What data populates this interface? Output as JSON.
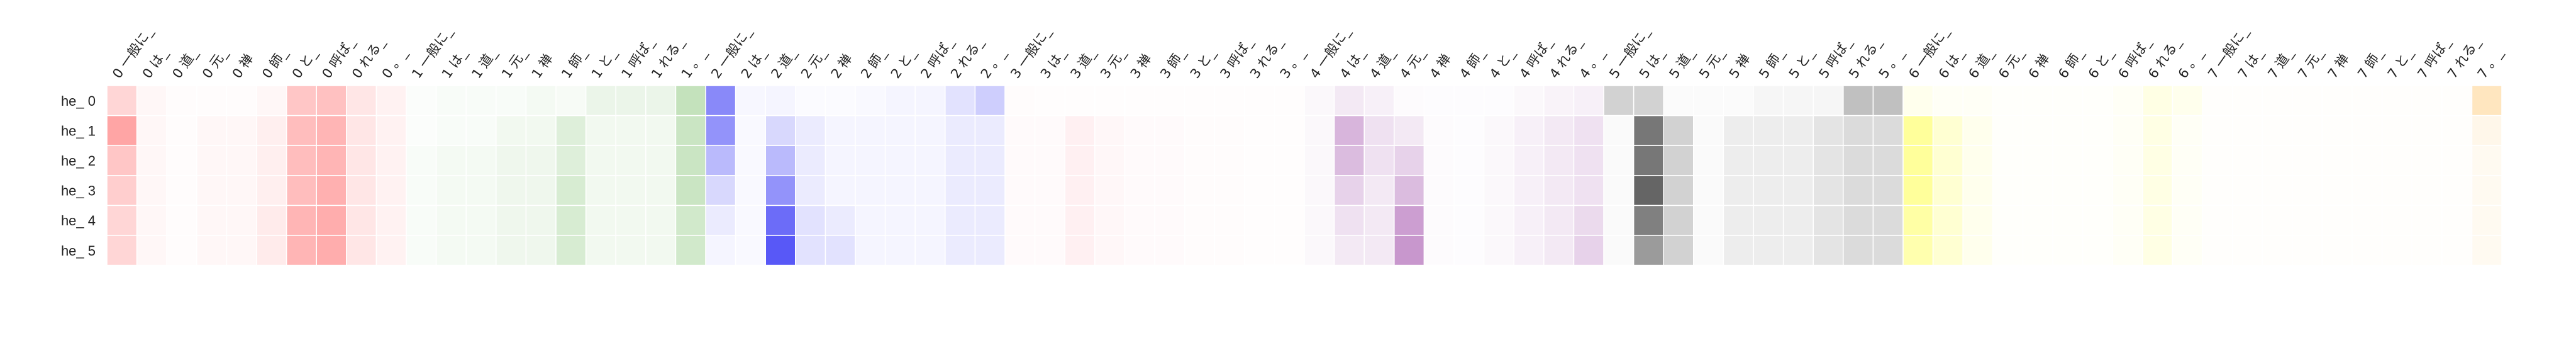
{
  "chart_data": {
    "type": "heatmap",
    "rows": [
      "he_ 0",
      "he_ 1",
      "he_ 2",
      "he_ 3",
      "he_ 4",
      "he_ 5"
    ],
    "columns": [
      "0 一般に_",
      "0 は_",
      "0 道_",
      "0 元_",
      "0 禅",
      "0 師_",
      "0 と_",
      "0 呼ば_",
      "0 れる_",
      "0 。_",
      "1 一般に_",
      "1 は_",
      "1 道_",
      "1 元_",
      "1 禅",
      "1 師_",
      "1 と_",
      "1 呼ば_",
      "1 れる_",
      "1 。_",
      "2 一般に_",
      "2 は_",
      "2 道_",
      "2 元_",
      "2 禅",
      "2 師_",
      "2 と_",
      "2 呼ば_",
      "2 れる_",
      "2 。_",
      "3 一般に_",
      "3 は_",
      "3 道_",
      "3 元_",
      "3 禅",
      "3 師_",
      "3 と_",
      "3 呼ば_",
      "3 れる_",
      "3 。_",
      "4 一般に_",
      "4 は_",
      "4 道_",
      "4 元_",
      "4 禅",
      "4 師_",
      "4 と_",
      "4 呼ば_",
      "4 れる_",
      "4 。_",
      "5 一般に_",
      "5 は_",
      "5 道_",
      "5 元_",
      "5 禅",
      "5 師_",
      "5 と_",
      "5 呼ば_",
      "5 れる_",
      "5 。_",
      "6 一般に_",
      "6 は_",
      "6 道_",
      "6 元_",
      "6 禅",
      "6 師_",
      "6 と_",
      "6 呼ば_",
      "6 れる_",
      "6 。_",
      "7 一般に_",
      "7 は_",
      "7 道_",
      "7 元_",
      "7 禅",
      "7 師_",
      "7 と_",
      "7 呼ば_",
      "7 れる_",
      "7 。_"
    ],
    "group_colors": [
      "#ff5b5b",
      "#7bbf6a",
      "#3b3bf5",
      "#ff9aa8",
      "#b06ab8",
      "#4a4a4a",
      "#ffff4a",
      "#ffc870"
    ],
    "values": [
      [
        0.25,
        0.05,
        0.02,
        0.02,
        0.02,
        0.05,
        0.35,
        0.38,
        0.15,
        0.08,
        0.03,
        0.05,
        0.05,
        0.05,
        0.08,
        0.06,
        0.15,
        0.15,
        0.15,
        0.45,
        0.6,
        0.04,
        0.05,
        0.02,
        0.02,
        0.03,
        0.05,
        0.05,
        0.15,
        0.25,
        0.03,
        0.02,
        0.02,
        0.02,
        0.02,
        0.02,
        0.02,
        0.02,
        0.02,
        0.02,
        0.05,
        0.15,
        0.1,
        0.03,
        0.02,
        0.02,
        0.02,
        0.05,
        0.08,
        0.1,
        0.25,
        0.25,
        0.02,
        0.02,
        0.02,
        0.05,
        0.05,
        0.05,
        0.35,
        0.35,
        0.1,
        0.05,
        0.05,
        0.02,
        0.02,
        0.02,
        0.02,
        0.05,
        0.15,
        0.1,
        0.02,
        0.02,
        0.02,
        0.02,
        0.02,
        0.02,
        0.02,
        0.02,
        0.02,
        0.45
      ],
      [
        0.55,
        0.05,
        0.02,
        0.05,
        0.05,
        0.1,
        0.4,
        0.45,
        0.15,
        0.08,
        0.03,
        0.05,
        0.05,
        0.1,
        0.1,
        0.25,
        0.1,
        0.1,
        0.1,
        0.4,
        0.55,
        0.03,
        0.2,
        0.1,
        0.05,
        0.05,
        0.05,
        0.05,
        0.1,
        0.1,
        0.05,
        0.05,
        0.15,
        0.08,
        0.05,
        0.05,
        0.03,
        0.03,
        0.02,
        0.02,
        0.05,
        0.5,
        0.2,
        0.15,
        0.03,
        0.02,
        0.05,
        0.1,
        0.15,
        0.2,
        0.03,
        0.75,
        0.25,
        0.03,
        0.1,
        0.1,
        0.1,
        0.15,
        0.2,
        0.2,
        0.55,
        0.25,
        0.1,
        0.02,
        0.02,
        0.02,
        0.02,
        0.05,
        0.15,
        0.05,
        0.02,
        0.02,
        0.02,
        0.02,
        0.02,
        0.02,
        0.02,
        0.02,
        0.02,
        0.15
      ],
      [
        0.35,
        0.05,
        0.02,
        0.05,
        0.05,
        0.1,
        0.4,
        0.45,
        0.15,
        0.08,
        0.05,
        0.08,
        0.08,
        0.12,
        0.12,
        0.25,
        0.1,
        0.1,
        0.1,
        0.4,
        0.35,
        0.03,
        0.35,
        0.1,
        0.05,
        0.05,
        0.05,
        0.05,
        0.1,
        0.1,
        0.05,
        0.05,
        0.15,
        0.08,
        0.05,
        0.05,
        0.03,
        0.03,
        0.02,
        0.02,
        0.05,
        0.45,
        0.2,
        0.3,
        0.03,
        0.02,
        0.05,
        0.1,
        0.15,
        0.2,
        0.03,
        0.75,
        0.25,
        0.03,
        0.1,
        0.1,
        0.1,
        0.15,
        0.2,
        0.2,
        0.55,
        0.25,
        0.1,
        0.02,
        0.02,
        0.02,
        0.02,
        0.05,
        0.15,
        0.05,
        0.02,
        0.02,
        0.02,
        0.02,
        0.02,
        0.02,
        0.02,
        0.02,
        0.02,
        0.1
      ],
      [
        0.3,
        0.05,
        0.02,
        0.05,
        0.05,
        0.1,
        0.4,
        0.48,
        0.15,
        0.08,
        0.05,
        0.08,
        0.08,
        0.12,
        0.12,
        0.3,
        0.1,
        0.1,
        0.1,
        0.4,
        0.2,
        0.03,
        0.55,
        0.1,
        0.05,
        0.05,
        0.05,
        0.05,
        0.1,
        0.1,
        0.05,
        0.05,
        0.15,
        0.08,
        0.05,
        0.05,
        0.03,
        0.03,
        0.02,
        0.02,
        0.05,
        0.3,
        0.15,
        0.45,
        0.03,
        0.02,
        0.05,
        0.1,
        0.15,
        0.2,
        0.03,
        0.85,
        0.25,
        0.03,
        0.1,
        0.1,
        0.1,
        0.15,
        0.2,
        0.2,
        0.55,
        0.25,
        0.1,
        0.02,
        0.02,
        0.02,
        0.02,
        0.05,
        0.15,
        0.05,
        0.02,
        0.02,
        0.02,
        0.02,
        0.02,
        0.02,
        0.02,
        0.02,
        0.02,
        0.1
      ],
      [
        0.25,
        0.05,
        0.02,
        0.05,
        0.05,
        0.12,
        0.45,
        0.5,
        0.15,
        0.08,
        0.05,
        0.08,
        0.08,
        0.12,
        0.12,
        0.3,
        0.1,
        0.1,
        0.1,
        0.35,
        0.1,
        0.03,
        0.75,
        0.15,
        0.1,
        0.05,
        0.05,
        0.05,
        0.1,
        0.1,
        0.05,
        0.05,
        0.15,
        0.08,
        0.05,
        0.05,
        0.03,
        0.03,
        0.02,
        0.02,
        0.05,
        0.2,
        0.15,
        0.65,
        0.03,
        0.02,
        0.05,
        0.1,
        0.15,
        0.25,
        0.03,
        0.7,
        0.25,
        0.03,
        0.1,
        0.1,
        0.1,
        0.15,
        0.2,
        0.2,
        0.5,
        0.25,
        0.1,
        0.02,
        0.02,
        0.02,
        0.02,
        0.05,
        0.15,
        0.05,
        0.02,
        0.02,
        0.02,
        0.02,
        0.02,
        0.02,
        0.02,
        0.02,
        0.02,
        0.1
      ],
      [
        0.25,
        0.05,
        0.02,
        0.05,
        0.05,
        0.12,
        0.45,
        0.5,
        0.15,
        0.08,
        0.05,
        0.08,
        0.08,
        0.12,
        0.12,
        0.3,
        0.1,
        0.1,
        0.1,
        0.35,
        0.05,
        0.03,
        0.85,
        0.15,
        0.15,
        0.05,
        0.05,
        0.05,
        0.1,
        0.1,
        0.05,
        0.05,
        0.15,
        0.08,
        0.05,
        0.05,
        0.03,
        0.03,
        0.02,
        0.02,
        0.05,
        0.15,
        0.15,
        0.7,
        0.03,
        0.02,
        0.05,
        0.1,
        0.15,
        0.3,
        0.03,
        0.55,
        0.25,
        0.03,
        0.1,
        0.1,
        0.1,
        0.15,
        0.2,
        0.2,
        0.45,
        0.25,
        0.1,
        0.02,
        0.02,
        0.02,
        0.02,
        0.05,
        0.15,
        0.05,
        0.02,
        0.02,
        0.02,
        0.02,
        0.02,
        0.02,
        0.02,
        0.02,
        0.02,
        0.1
      ]
    ]
  }
}
